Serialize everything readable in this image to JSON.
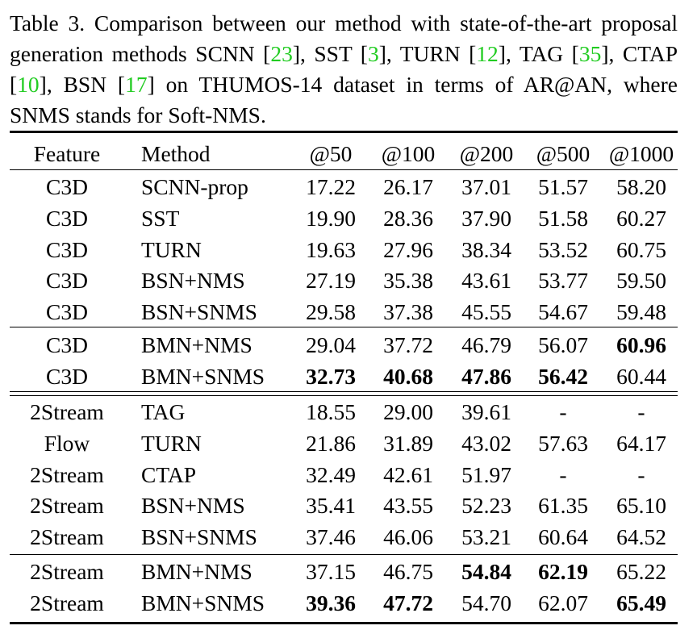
{
  "caption": [
    {
      "text": "Table 3.   Comparison between our method with state-of-the-art proposal generation methods SCNN ["
    },
    {
      "text": "23",
      "color": "#22cc22"
    },
    {
      "text": "], SST ["
    },
    {
      "text": "3",
      "color": "#22cc22"
    },
    {
      "text": "], TURN ["
    },
    {
      "text": "12",
      "color": "#22cc22"
    },
    {
      "text": "], TAG ["
    },
    {
      "text": "35",
      "color": "#22cc22"
    },
    {
      "text": "], CTAP ["
    },
    {
      "text": "10",
      "color": "#22cc22"
    },
    {
      "text": "], BSN ["
    },
    {
      "text": "17",
      "color": "#22cc22"
    },
    {
      "text": "] on THUMOS-14 dataset in terms of AR@AN, where SNMS stands for Soft-NMS."
    }
  ],
  "table": {
    "header": [
      "Feature",
      "Method",
      "@50",
      "@100",
      "@200",
      "@500",
      "@1000"
    ],
    "groups": [
      [
        [
          "C3D",
          "SCNN-prop",
          "17.22",
          "26.17",
          "37.01",
          "51.57",
          "58.20"
        ],
        [
          "C3D",
          "SST",
          "19.90",
          "28.36",
          "37.90",
          "51.58",
          "60.27"
        ],
        [
          "C3D",
          "TURN",
          "19.63",
          "27.96",
          "38.34",
          "53.52",
          "60.75"
        ],
        [
          "C3D",
          "BSN+NMS",
          "27.19",
          "35.38",
          "43.61",
          "53.77",
          "59.50"
        ],
        [
          "C3D",
          "BSN+SNMS",
          "29.58",
          "37.38",
          "45.55",
          "54.67",
          "59.48"
        ]
      ],
      [
        [
          "C3D",
          "BMN+NMS",
          "29.04",
          "37.72",
          "46.79",
          "56.07",
          {
            "text": "60.96",
            "bold": true
          }
        ],
        [
          "C3D",
          "BMN+SNMS",
          {
            "text": "32.73",
            "bold": true
          },
          {
            "text": "40.68",
            "bold": true
          },
          {
            "text": "47.86",
            "bold": true
          },
          {
            "text": "56.42",
            "bold": true
          },
          "60.44"
        ]
      ],
      [
        [
          "2Stream",
          "TAG",
          "18.55",
          "29.00",
          "39.61",
          "-",
          "-"
        ],
        [
          "Flow",
          "TURN",
          "21.86",
          "31.89",
          "43.02",
          "57.63",
          "64.17"
        ],
        [
          "2Stream",
          "CTAP",
          "32.49",
          "42.61",
          "51.97",
          "-",
          "-"
        ],
        [
          "2Stream",
          "BSN+NMS",
          "35.41",
          "43.55",
          "52.23",
          "61.35",
          "65.10"
        ],
        [
          "2Stream",
          "BSN+SNMS",
          "37.46",
          "46.06",
          "53.21",
          "60.64",
          "64.52"
        ]
      ],
      [
        [
          "2Stream",
          "BMN+NMS",
          "37.15",
          "46.75",
          {
            "text": "54.84",
            "bold": true
          },
          {
            "text": "62.19",
            "bold": true
          },
          "65.22"
        ],
        [
          "2Stream",
          "BMN+SNMS",
          {
            "text": "39.36",
            "bold": true
          },
          {
            "text": "47.72",
            "bold": true
          },
          "54.70",
          "62.07",
          {
            "text": "65.49",
            "bold": true
          }
        ]
      ]
    ]
  }
}
